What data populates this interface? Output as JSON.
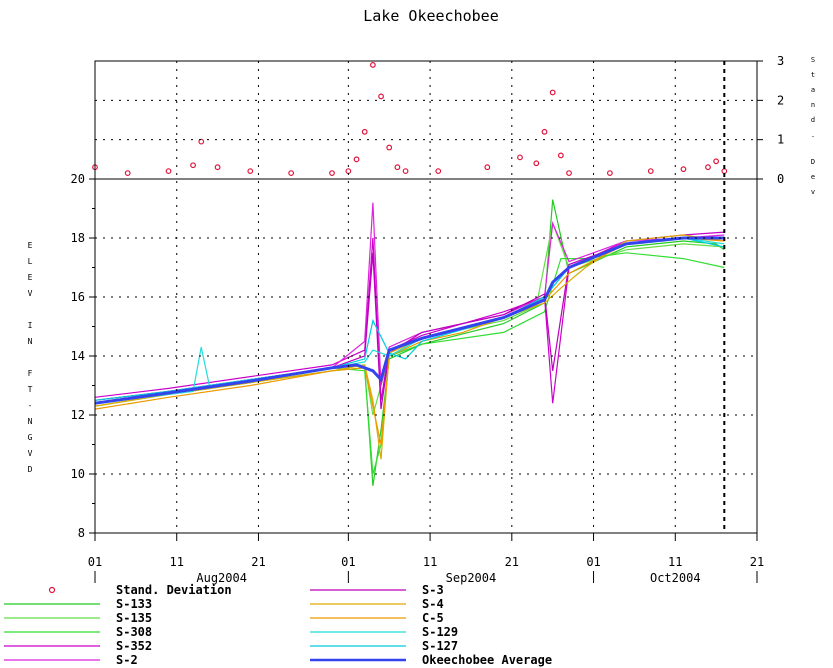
{
  "chart_data": {
    "type": "line",
    "title": "Lake Okeechobee",
    "ylabel": "ELEV IN FT-NGVD",
    "y2label": "Stand. Dev",
    "ylim": [
      8,
      20
    ],
    "y2lim": [
      0,
      3
    ],
    "yticks": [
      8,
      10,
      12,
      14,
      16,
      18,
      20
    ],
    "y2ticks": [
      0,
      1,
      2,
      3
    ],
    "x_axis": {
      "start": "2004-08-01",
      "end": "2004-10-21",
      "day_ticks": [
        "01",
        "11",
        "21",
        "01",
        "11",
        "21",
        "01",
        "11",
        "21"
      ],
      "months": [
        "Aug2004",
        "Sep2004",
        "Oct2004"
      ],
      "marker_date": "2004-10-17"
    },
    "std_dev": {
      "name": "Stand. Deviation",
      "x": [
        "2004-08-01",
        "2004-08-05",
        "2004-08-10",
        "2004-08-13",
        "2004-08-14",
        "2004-08-16",
        "2004-08-20",
        "2004-08-25",
        "2004-08-30",
        "2004-09-01",
        "2004-09-02",
        "2004-09-03",
        "2004-09-04",
        "2004-09-05",
        "2004-09-06",
        "2004-09-07",
        "2004-09-08",
        "2004-09-12",
        "2004-09-18",
        "2004-09-22",
        "2004-09-24",
        "2004-09-25",
        "2004-09-26",
        "2004-09-27",
        "2004-09-28",
        "2004-10-03",
        "2004-10-08",
        "2004-10-12",
        "2004-10-15",
        "2004-10-16",
        "2004-10-17"
      ],
      "y": [
        0.3,
        0.15,
        0.2,
        0.35,
        0.95,
        0.3,
        0.2,
        0.15,
        0.15,
        0.2,
        0.5,
        1.2,
        2.9,
        2.1,
        0.8,
        0.3,
        0.2,
        0.2,
        0.3,
        0.55,
        0.4,
        1.2,
        2.2,
        0.6,
        0.15,
        0.15,
        0.2,
        0.25,
        0.3,
        0.45,
        0.2
      ]
    },
    "series": [
      {
        "name": "S-133",
        "color": "#22cc22",
        "x": [
          "2004-08-01",
          "2004-08-10",
          "2004-08-20",
          "2004-08-30",
          "2004-09-03",
          "2004-09-04",
          "2004-09-05",
          "2004-09-06",
          "2004-09-10",
          "2004-09-20",
          "2004-09-25",
          "2004-09-26",
          "2004-09-28",
          "2004-10-05",
          "2004-10-12",
          "2004-10-16",
          "2004-10-17"
        ],
        "y": [
          12.4,
          12.7,
          13.1,
          13.5,
          13.6,
          9.6,
          11.5,
          13.9,
          14.4,
          15.1,
          15.8,
          19.3,
          16.8,
          17.7,
          17.9,
          17.8,
          17.6
        ]
      },
      {
        "name": "S-135",
        "color": "#66dd44",
        "x": [
          "2004-08-01",
          "2004-08-10",
          "2004-08-20",
          "2004-08-30",
          "2004-09-03",
          "2004-09-04",
          "2004-09-05",
          "2004-09-06",
          "2004-09-10",
          "2004-09-20",
          "2004-09-24",
          "2004-09-26",
          "2004-09-28",
          "2004-10-05",
          "2004-10-12",
          "2004-10-17"
        ],
        "y": [
          12.3,
          12.7,
          13.2,
          13.6,
          13.7,
          12.0,
          13.0,
          14.0,
          14.6,
          15.2,
          15.7,
          18.5,
          17.0,
          17.6,
          17.8,
          17.7
        ]
      },
      {
        "name": "S-308",
        "color": "#33dd33",
        "x": [
          "2004-08-01",
          "2004-08-10",
          "2004-08-20",
          "2004-08-30",
          "2004-09-03",
          "2004-09-04",
          "2004-09-05",
          "2004-09-06",
          "2004-09-10",
          "2004-09-20",
          "2004-09-25",
          "2004-09-27",
          "2004-09-30",
          "2004-10-05",
          "2004-10-12",
          "2004-10-17"
        ],
        "y": [
          12.5,
          12.8,
          13.2,
          13.6,
          13.5,
          10.0,
          11.0,
          14.0,
          14.4,
          14.8,
          15.5,
          17.3,
          17.3,
          17.5,
          17.3,
          17.0
        ]
      },
      {
        "name": "S-352",
        "color": "#cc00cc",
        "x": [
          "2004-08-01",
          "2004-08-10",
          "2004-08-20",
          "2004-08-30",
          "2004-09-03",
          "2004-09-04",
          "2004-09-05",
          "2004-09-06",
          "2004-09-10",
          "2004-09-20",
          "2004-09-25",
          "2004-09-26",
          "2004-09-28",
          "2004-10-05",
          "2004-10-12",
          "2004-10-17"
        ],
        "y": [
          12.6,
          12.9,
          13.3,
          13.7,
          14.2,
          18.0,
          12.5,
          14.2,
          14.7,
          15.5,
          16.0,
          12.4,
          17.0,
          17.9,
          18.1,
          18.2
        ]
      },
      {
        "name": "S-2",
        "color": "#dd22dd",
        "x": [
          "2004-08-01",
          "2004-08-10",
          "2004-08-20",
          "2004-08-30",
          "2004-09-03",
          "2004-09-04",
          "2004-09-05",
          "2004-09-06",
          "2004-09-10",
          "2004-09-20",
          "2004-09-25",
          "2004-09-26",
          "2004-09-28",
          "2004-10-05",
          "2004-10-12",
          "2004-10-17"
        ],
        "y": [
          12.4,
          12.8,
          13.2,
          13.6,
          14.5,
          19.2,
          13.0,
          14.3,
          14.8,
          15.4,
          16.0,
          18.5,
          17.2,
          17.9,
          18.0,
          18.1
        ]
      },
      {
        "name": "S-3",
        "color": "#bb00bb",
        "x": [
          "2004-08-01",
          "2004-08-10",
          "2004-08-20",
          "2004-08-30",
          "2004-09-03",
          "2004-09-04",
          "2004-09-05",
          "2004-09-06",
          "2004-09-10",
          "2004-09-20",
          "2004-09-25",
          "2004-09-26",
          "2004-09-28",
          "2004-10-05",
          "2004-10-12",
          "2004-10-17"
        ],
        "y": [
          12.5,
          12.8,
          13.2,
          13.6,
          14.0,
          17.5,
          12.2,
          14.1,
          14.8,
          15.4,
          16.1,
          13.5,
          17.1,
          17.8,
          18.0,
          18.0
        ]
      },
      {
        "name": "S-4",
        "color": "#ddaa00",
        "x": [
          "2004-08-01",
          "2004-08-10",
          "2004-08-20",
          "2004-08-30",
          "2004-09-03",
          "2004-09-04",
          "2004-09-05",
          "2004-09-06",
          "2004-09-10",
          "2004-09-20",
          "2004-09-25",
          "2004-09-27",
          "2004-09-30",
          "2004-10-05",
          "2004-10-12",
          "2004-10-17"
        ],
        "y": [
          12.3,
          12.7,
          13.1,
          13.5,
          13.7,
          12.5,
          10.5,
          14.1,
          14.6,
          15.3,
          15.8,
          16.3,
          17.0,
          17.9,
          18.1,
          17.9
        ]
      },
      {
        "name": "C-5",
        "color": "#ee9900",
        "x": [
          "2004-08-01",
          "2004-08-10",
          "2004-08-20",
          "2004-08-30",
          "2004-09-03",
          "2004-09-05",
          "2004-09-06",
          "2004-09-10",
          "2004-09-15",
          "2004-09-20",
          "2004-09-25",
          "2004-09-28",
          "2004-10-05",
          "2004-10-12",
          "2004-10-17"
        ],
        "y": [
          12.2,
          12.6,
          13.0,
          13.5,
          13.6,
          11.0,
          14.0,
          14.5,
          14.8,
          15.3,
          15.9,
          16.8,
          17.8,
          18.0,
          17.9
        ]
      },
      {
        "name": "S-129",
        "color": "#22dddd",
        "x": [
          "2004-08-01",
          "2004-08-13",
          "2004-08-14",
          "2004-08-15",
          "2004-08-20",
          "2004-08-30",
          "2004-09-03",
          "2004-09-04",
          "2004-09-06",
          "2004-09-10",
          "2004-09-20",
          "2004-09-25",
          "2004-09-28",
          "2004-10-05",
          "2004-10-12",
          "2004-10-17"
        ],
        "y": [
          12.4,
          12.8,
          14.3,
          13.0,
          13.2,
          13.6,
          13.8,
          14.2,
          14.0,
          14.6,
          15.3,
          16.0,
          17.0,
          17.8,
          18.0,
          17.8
        ]
      },
      {
        "name": "S-127",
        "color": "#00ccdd",
        "x": [
          "2004-08-01",
          "2004-08-10",
          "2004-08-20",
          "2004-08-30",
          "2004-09-03",
          "2004-09-04",
          "2004-09-06",
          "2004-09-08",
          "2004-09-10",
          "2004-09-20",
          "2004-09-25",
          "2004-09-28",
          "2004-10-05",
          "2004-10-12",
          "2004-10-17"
        ],
        "y": [
          12.5,
          12.8,
          13.2,
          13.6,
          13.9,
          15.2,
          14.1,
          13.9,
          14.5,
          15.3,
          16.0,
          17.0,
          17.8,
          18.0,
          17.7
        ]
      },
      {
        "name": "Okeechobee Average",
        "color": "#3344ee",
        "x": [
          "2004-08-01",
          "2004-08-10",
          "2004-08-20",
          "2004-08-30",
          "2004-09-02",
          "2004-09-04",
          "2004-09-05",
          "2004-09-06",
          "2004-09-10",
          "2004-09-20",
          "2004-09-25",
          "2004-09-26",
          "2004-09-28",
          "2004-10-05",
          "2004-10-12",
          "2004-10-17"
        ],
        "y": [
          12.4,
          12.75,
          13.15,
          13.6,
          13.7,
          13.5,
          13.2,
          14.2,
          14.6,
          15.3,
          15.9,
          16.5,
          17.0,
          17.8,
          18.0,
          18.0
        ]
      }
    ]
  }
}
